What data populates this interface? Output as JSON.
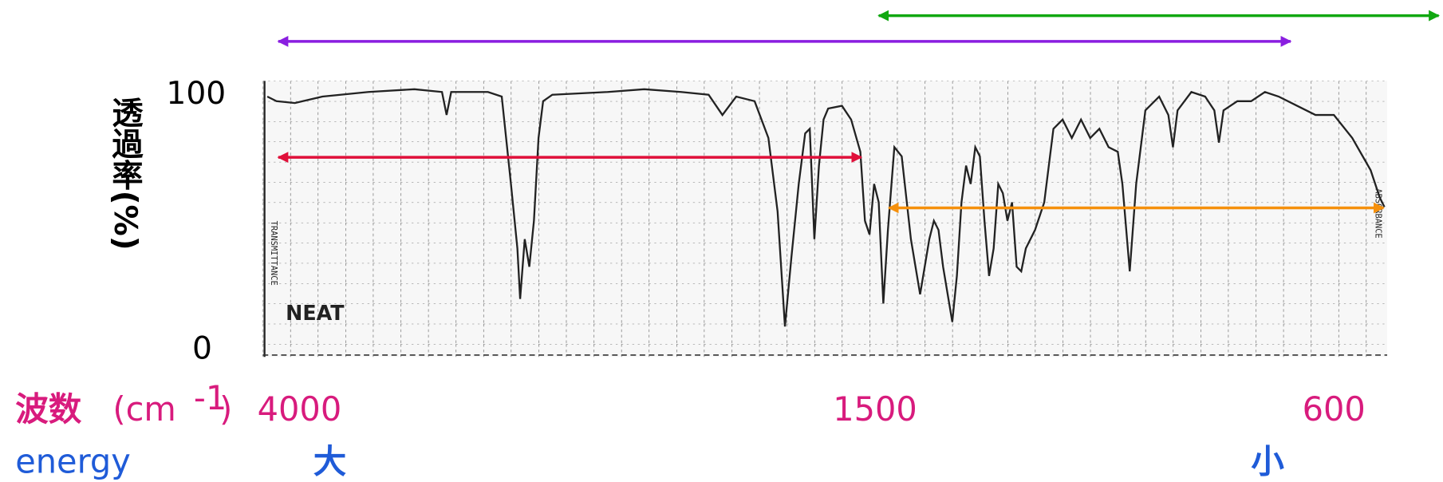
{
  "y_axis": {
    "label": "透過率(%)",
    "top": "100",
    "bottom": "0"
  },
  "x_axis": {
    "label": "波数",
    "unit_open": "(cm",
    "unit_exponent": "-1",
    "unit_close": ")",
    "ticks": [
      "4000",
      "1500",
      "600"
    ]
  },
  "energy": {
    "label": "energy",
    "high": "大",
    "low": "小"
  },
  "spectrum": {
    "sample": "NEAT",
    "left_label": "TRANSMITTANCE",
    "right_label": "ABSORBANCE"
  }
}
